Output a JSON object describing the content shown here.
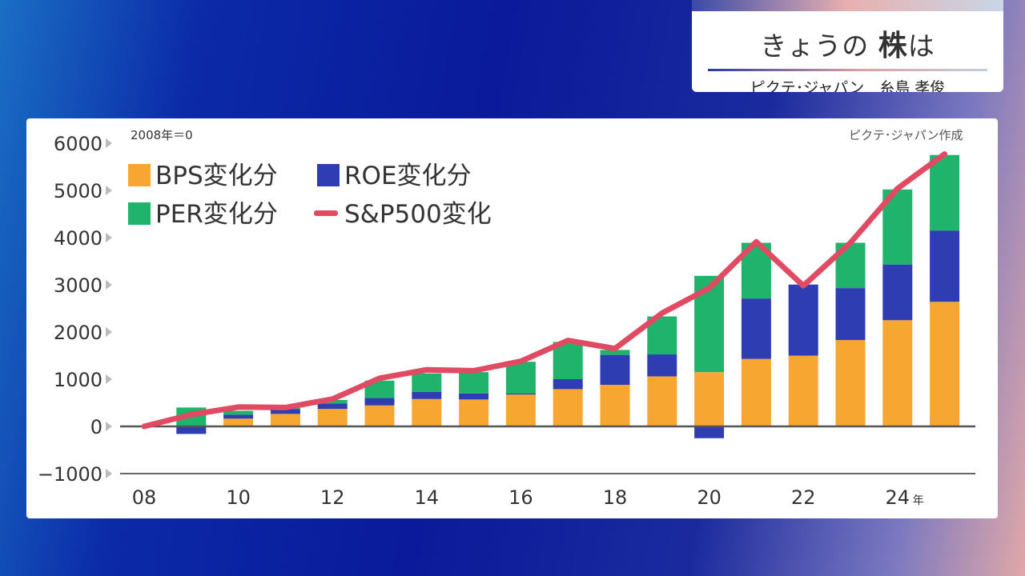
{
  "header": {
    "title_prefix": "きょうの",
    "title_main": "株",
    "title_suffix": "は",
    "subtitle": "ピクテ･ジャパン　糸島 孝俊"
  },
  "chart_data": {
    "type": "bar",
    "stacked": true,
    "note": "2008年＝0",
    "source": "ピクテ･ジャパン作成",
    "x": [
      2008,
      2009,
      2010,
      2011,
      2012,
      2013,
      2014,
      2015,
      2016,
      2017,
      2018,
      2019,
      2020,
      2021,
      2022,
      2023,
      2024,
      2025
    ],
    "x_tick_labels": [
      {
        "year": 2008,
        "label": "08"
      },
      {
        "year": 2010,
        "label": "10"
      },
      {
        "year": 2012,
        "label": "12"
      },
      {
        "year": 2014,
        "label": "14"
      },
      {
        "year": 2016,
        "label": "16"
      },
      {
        "year": 2018,
        "label": "18"
      },
      {
        "year": 2020,
        "label": "20"
      },
      {
        "year": 2022,
        "label": "22"
      },
      {
        "year": 2024,
        "label": "24"
      }
    ],
    "x_unit": "年",
    "y_ticks": [
      "6000",
      "5000",
      "4000",
      "3000",
      "2000",
      "1000",
      "0",
      "−1000"
    ],
    "y_tick_values": [
      6000,
      5000,
      4000,
      3000,
      2000,
      1000,
      0,
      -1000
    ],
    "ylim": [
      -1000,
      6000
    ],
    "series": [
      {
        "name": "BPS変化分",
        "kind": "bar",
        "color": "#f7a731",
        "values": [
          0,
          0,
          165,
          265,
          370,
          445,
          580,
          570,
          675,
          790,
          880,
          1060,
          1150,
          1430,
          1500,
          1830,
          2250,
          2640
        ]
      },
      {
        "name": "ROE変化分",
        "kind": "bar",
        "color": "#2f3db3",
        "values": [
          0,
          -160,
          85,
          105,
          115,
          160,
          150,
          130,
          20,
          210,
          635,
          465,
          -250,
          1280,
          1505,
          1100,
          1180,
          1510
        ]
      },
      {
        "name": "PER変化分",
        "kind": "bar",
        "color": "#20b36b",
        "values": [
          0,
          400,
          80,
          20,
          75,
          365,
          395,
          450,
          675,
          790,
          105,
          805,
          2040,
          1180,
          0,
          960,
          1590,
          1600
        ]
      },
      {
        "name": "S&P500変化",
        "kind": "line",
        "color": "#e04a62",
        "values": [
          0,
          250,
          410,
          400,
          580,
          1020,
          1200,
          1180,
          1380,
          1820,
          1650,
          2400,
          2930,
          3910,
          2980,
          3890,
          5040,
          5770
        ]
      }
    ],
    "legend_position": "top-left"
  }
}
